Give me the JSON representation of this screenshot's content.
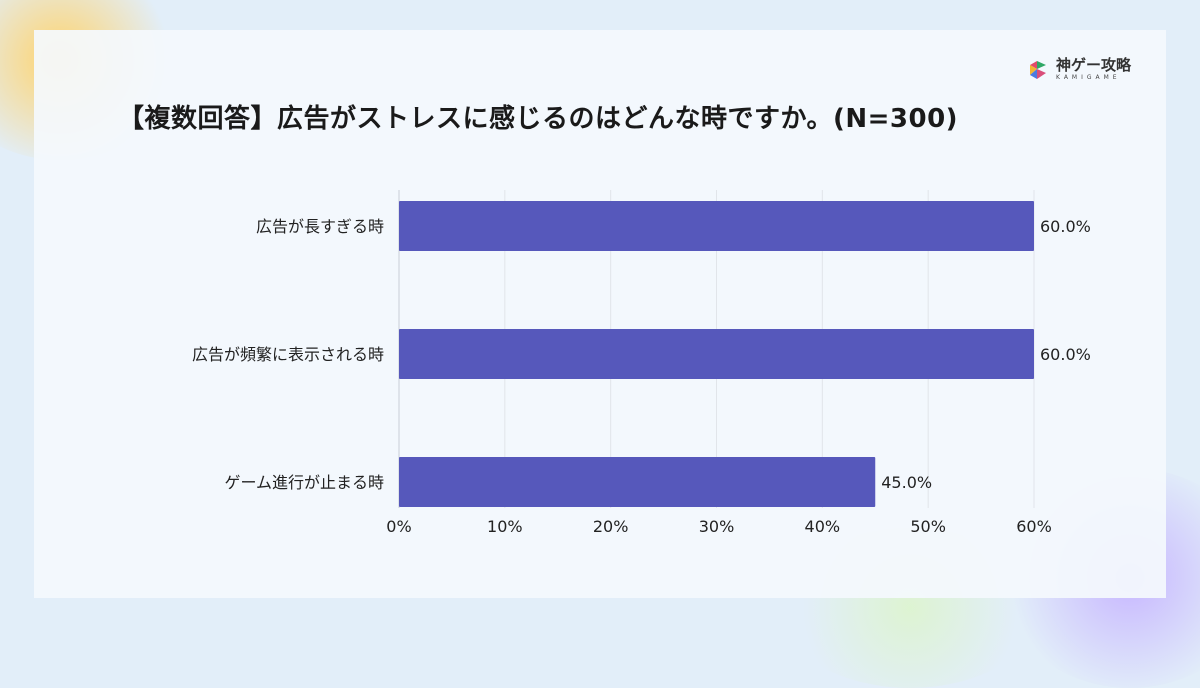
{
  "logo": {
    "name_jp": "神ゲー攻略",
    "name_en": "KAMIGAME"
  },
  "chart_data": {
    "type": "bar",
    "orientation": "horizontal",
    "title": "【複数回答】広告がストレスに感じるのはどんな時ですか。(N=300)",
    "categories": [
      "広告が長すぎる時",
      "広告が頻繁に表示される時",
      "ゲーム進行が止まる時"
    ],
    "values": [
      60.0,
      60.0,
      45.0
    ],
    "data_labels": [
      "60.0%",
      "60.0%",
      "45.0%"
    ],
    "xlim": [
      0,
      60
    ],
    "x_ticks": [
      "0%",
      "10%",
      "20%",
      "30%",
      "40%",
      "50%",
      "60%"
    ],
    "grid": true,
    "bar_color": "#5658bb"
  }
}
